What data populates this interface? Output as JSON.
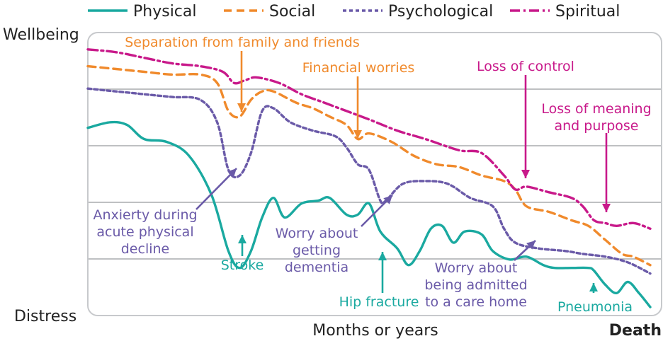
{
  "chart_data": {
    "type": "line",
    "ylabel_top": "Wellbeing",
    "ylabel_bottom": "Distress",
    "xlabel": "Months or years",
    "xend_label": "Death",
    "legend": [
      {
        "name": "Physical",
        "color": "#1aa9a0",
        "style": "solid"
      },
      {
        "name": "Social",
        "color": "#f08a2c",
        "style": "dashed"
      },
      {
        "name": "Psychological",
        "color": "#6a5aa8",
        "style": "dotted"
      },
      {
        "name": "Spiritual",
        "color": "#c8198a",
        "style": "dash-dot"
      }
    ],
    "series": [
      {
        "name": "Physical",
        "color": "#1aa9a0",
        "dash": "",
        "points": [
          [
            0,
            67
          ],
          [
            0.04,
            69
          ],
          [
            0.07,
            68
          ],
          [
            0.1,
            63
          ],
          [
            0.14,
            62
          ],
          [
            0.18,
            57
          ],
          [
            0.22,
            43
          ],
          [
            0.25,
            23
          ],
          [
            0.27,
            17
          ],
          [
            0.29,
            23
          ],
          [
            0.31,
            35
          ],
          [
            0.33,
            42
          ],
          [
            0.35,
            35
          ],
          [
            0.38,
            40
          ],
          [
            0.41,
            41
          ],
          [
            0.43,
            42
          ],
          [
            0.46,
            36
          ],
          [
            0.48,
            36
          ],
          [
            0.5,
            40
          ],
          [
            0.52,
            30
          ],
          [
            0.55,
            24
          ],
          [
            0.57,
            18
          ],
          [
            0.59,
            23
          ],
          [
            0.61,
            31
          ],
          [
            0.63,
            32
          ],
          [
            0.65,
            26
          ],
          [
            0.67,
            30
          ],
          [
            0.7,
            29
          ],
          [
            0.72,
            23
          ],
          [
            0.75,
            20
          ],
          [
            0.78,
            21
          ],
          [
            0.81,
            18
          ],
          [
            0.83,
            17
          ],
          [
            0.86,
            17
          ],
          [
            0.89,
            17
          ],
          [
            0.9,
            16
          ],
          [
            0.92,
            11
          ],
          [
            0.94,
            8
          ],
          [
            0.96,
            12
          ],
          [
            0.98,
            8
          ],
          [
            1,
            3
          ]
        ]
      },
      {
        "name": "Social",
        "color": "#f08a2c",
        "dash": "11,7",
        "points": [
          [
            0,
            89
          ],
          [
            0.05,
            88
          ],
          [
            0.1,
            87
          ],
          [
            0.15,
            86
          ],
          [
            0.2,
            86
          ],
          [
            0.23,
            83
          ],
          [
            0.25,
            73
          ],
          [
            0.27,
            71
          ],
          [
            0.29,
            77
          ],
          [
            0.31,
            80
          ],
          [
            0.33,
            80
          ],
          [
            0.37,
            76
          ],
          [
            0.4,
            74
          ],
          [
            0.43,
            71
          ],
          [
            0.46,
            68
          ],
          [
            0.48,
            63
          ],
          [
            0.5,
            65
          ],
          [
            0.54,
            62
          ],
          [
            0.58,
            57
          ],
          [
            0.62,
            54
          ],
          [
            0.66,
            53
          ],
          [
            0.7,
            50
          ],
          [
            0.74,
            48
          ],
          [
            0.76,
            45
          ],
          [
            0.78,
            39
          ],
          [
            0.82,
            37
          ],
          [
            0.86,
            34
          ],
          [
            0.89,
            32
          ],
          [
            0.92,
            27
          ],
          [
            0.95,
            22
          ],
          [
            0.97,
            21
          ],
          [
            1,
            18
          ]
        ]
      },
      {
        "name": "Psychological",
        "color": "#6a5aa8",
        "dash": "5,4",
        "points": [
          [
            0,
            81
          ],
          [
            0.05,
            80
          ],
          [
            0.1,
            79
          ],
          [
            0.15,
            78
          ],
          [
            0.2,
            77
          ],
          [
            0.23,
            69
          ],
          [
            0.25,
            52
          ],
          [
            0.27,
            50
          ],
          [
            0.29,
            58
          ],
          [
            0.31,
            73
          ],
          [
            0.33,
            74
          ],
          [
            0.36,
            69
          ],
          [
            0.4,
            66
          ],
          [
            0.44,
            64
          ],
          [
            0.46,
            60
          ],
          [
            0.48,
            54
          ],
          [
            0.5,
            52
          ],
          [
            0.52,
            41
          ],
          [
            0.53,
            41
          ],
          [
            0.56,
            47
          ],
          [
            0.6,
            48
          ],
          [
            0.64,
            47
          ],
          [
            0.68,
            42
          ],
          [
            0.72,
            39
          ],
          [
            0.74,
            31
          ],
          [
            0.76,
            26
          ],
          [
            0.8,
            24
          ],
          [
            0.85,
            23
          ],
          [
            0.88,
            22
          ],
          [
            0.92,
            21
          ],
          [
            0.96,
            19
          ],
          [
            1,
            15
          ]
        ]
      },
      {
        "name": "Spiritual",
        "color": "#c8198a",
        "dash": "14,5,3,5",
        "points": [
          [
            0,
            95
          ],
          [
            0.05,
            94
          ],
          [
            0.1,
            92
          ],
          [
            0.15,
            90
          ],
          [
            0.2,
            89
          ],
          [
            0.24,
            87
          ],
          [
            0.26,
            83
          ],
          [
            0.28,
            84
          ],
          [
            0.3,
            85
          ],
          [
            0.34,
            83
          ],
          [
            0.38,
            79
          ],
          [
            0.42,
            76
          ],
          [
            0.46,
            73
          ],
          [
            0.5,
            70
          ],
          [
            0.55,
            66
          ],
          [
            0.6,
            63
          ],
          [
            0.66,
            59
          ],
          [
            0.7,
            58
          ],
          [
            0.74,
            50
          ],
          [
            0.76,
            45
          ],
          [
            0.78,
            46
          ],
          [
            0.82,
            44
          ],
          [
            0.86,
            42
          ],
          [
            0.88,
            39
          ],
          [
            0.9,
            34
          ],
          [
            0.92,
            33
          ],
          [
            0.94,
            32
          ],
          [
            0.97,
            33
          ],
          [
            1,
            31
          ]
        ]
      }
    ],
    "annotations": [
      {
        "lines": [
          "Separation from family and friends"
        ],
        "color": "#f08a2c",
        "x": 0.27,
        "y": 76
      },
      {
        "lines": [
          "Financial worries"
        ],
        "color": "#f08a2c",
        "x": 0.49,
        "y": 65
      },
      {
        "lines": [
          "Loss of control"
        ],
        "color": "#c8198a",
        "x": 0.77,
        "y": 48
      },
      {
        "lines": [
          "Loss of meaning",
          "and purpose"
        ],
        "color": "#c8198a",
        "x": 0.94,
        "y": 36
      },
      {
        "lines": [
          "Anxierty during",
          "acute physical",
          "decline"
        ],
        "color": "#6a5aa8",
        "x": 0.27,
        "y": 51
      },
      {
        "lines": [
          "Stroke"
        ],
        "color": "#1aa9a0",
        "x": 0.27,
        "y": 17
      },
      {
        "lines": [
          "Worry about",
          "getting",
          "dementia"
        ],
        "color": "#6a5aa8",
        "x": 0.54,
        "y": 44
      },
      {
        "lines": [
          "Hip fracture"
        ],
        "color": "#1aa9a0",
        "x": 0.53,
        "y": 17
      },
      {
        "lines": [
          "Worry about",
          "being admitted",
          "to a care home"
        ],
        "color": "#6a5aa8",
        "x": 0.79,
        "y": 23
      },
      {
        "lines": [
          "Pneumonia"
        ],
        "color": "#1aa9a0",
        "x": 0.9,
        "y": 9
      }
    ],
    "grid": true,
    "legend_position": "top"
  }
}
